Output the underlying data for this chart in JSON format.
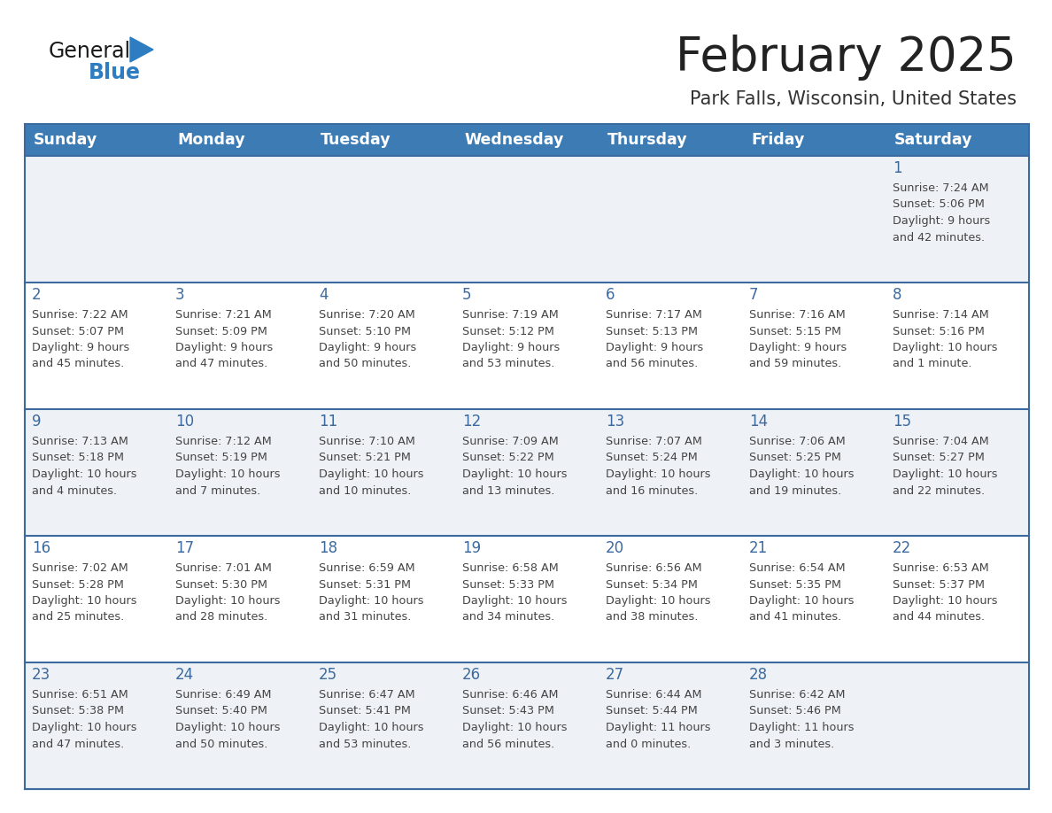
{
  "title": "February 2025",
  "subtitle": "Park Falls, Wisconsin, United States",
  "header_bg": "#3d7bb5",
  "header_text_color": "#ffffff",
  "day_names": [
    "Sunday",
    "Monday",
    "Tuesday",
    "Wednesday",
    "Thursday",
    "Friday",
    "Saturday"
  ],
  "row_bg_light": "#eef2f7",
  "row_bg_white": "#ffffff",
  "border_color": "#3d6a9e",
  "date_color": "#3d6a9e",
  "info_color": "#444444",
  "title_color": "#222222",
  "subtitle_color": "#333333",
  "logo_text_color": "#1a1a1a",
  "logo_blue_color": "#2e7dc0",
  "logo_triangle_color": "#2e7dc0",
  "calendar": [
    [
      {
        "day": "",
        "info": ""
      },
      {
        "day": "",
        "info": ""
      },
      {
        "day": "",
        "info": ""
      },
      {
        "day": "",
        "info": ""
      },
      {
        "day": "",
        "info": ""
      },
      {
        "day": "",
        "info": ""
      },
      {
        "day": "1",
        "info": "Sunrise: 7:24 AM\nSunset: 5:06 PM\nDaylight: 9 hours\nand 42 minutes."
      }
    ],
    [
      {
        "day": "2",
        "info": "Sunrise: 7:22 AM\nSunset: 5:07 PM\nDaylight: 9 hours\nand 45 minutes."
      },
      {
        "day": "3",
        "info": "Sunrise: 7:21 AM\nSunset: 5:09 PM\nDaylight: 9 hours\nand 47 minutes."
      },
      {
        "day": "4",
        "info": "Sunrise: 7:20 AM\nSunset: 5:10 PM\nDaylight: 9 hours\nand 50 minutes."
      },
      {
        "day": "5",
        "info": "Sunrise: 7:19 AM\nSunset: 5:12 PM\nDaylight: 9 hours\nand 53 minutes."
      },
      {
        "day": "6",
        "info": "Sunrise: 7:17 AM\nSunset: 5:13 PM\nDaylight: 9 hours\nand 56 minutes."
      },
      {
        "day": "7",
        "info": "Sunrise: 7:16 AM\nSunset: 5:15 PM\nDaylight: 9 hours\nand 59 minutes."
      },
      {
        "day": "8",
        "info": "Sunrise: 7:14 AM\nSunset: 5:16 PM\nDaylight: 10 hours\nand 1 minute."
      }
    ],
    [
      {
        "day": "9",
        "info": "Sunrise: 7:13 AM\nSunset: 5:18 PM\nDaylight: 10 hours\nand 4 minutes."
      },
      {
        "day": "10",
        "info": "Sunrise: 7:12 AM\nSunset: 5:19 PM\nDaylight: 10 hours\nand 7 minutes."
      },
      {
        "day": "11",
        "info": "Sunrise: 7:10 AM\nSunset: 5:21 PM\nDaylight: 10 hours\nand 10 minutes."
      },
      {
        "day": "12",
        "info": "Sunrise: 7:09 AM\nSunset: 5:22 PM\nDaylight: 10 hours\nand 13 minutes."
      },
      {
        "day": "13",
        "info": "Sunrise: 7:07 AM\nSunset: 5:24 PM\nDaylight: 10 hours\nand 16 minutes."
      },
      {
        "day": "14",
        "info": "Sunrise: 7:06 AM\nSunset: 5:25 PM\nDaylight: 10 hours\nand 19 minutes."
      },
      {
        "day": "15",
        "info": "Sunrise: 7:04 AM\nSunset: 5:27 PM\nDaylight: 10 hours\nand 22 minutes."
      }
    ],
    [
      {
        "day": "16",
        "info": "Sunrise: 7:02 AM\nSunset: 5:28 PM\nDaylight: 10 hours\nand 25 minutes."
      },
      {
        "day": "17",
        "info": "Sunrise: 7:01 AM\nSunset: 5:30 PM\nDaylight: 10 hours\nand 28 minutes."
      },
      {
        "day": "18",
        "info": "Sunrise: 6:59 AM\nSunset: 5:31 PM\nDaylight: 10 hours\nand 31 minutes."
      },
      {
        "day": "19",
        "info": "Sunrise: 6:58 AM\nSunset: 5:33 PM\nDaylight: 10 hours\nand 34 minutes."
      },
      {
        "day": "20",
        "info": "Sunrise: 6:56 AM\nSunset: 5:34 PM\nDaylight: 10 hours\nand 38 minutes."
      },
      {
        "day": "21",
        "info": "Sunrise: 6:54 AM\nSunset: 5:35 PM\nDaylight: 10 hours\nand 41 minutes."
      },
      {
        "day": "22",
        "info": "Sunrise: 6:53 AM\nSunset: 5:37 PM\nDaylight: 10 hours\nand 44 minutes."
      }
    ],
    [
      {
        "day": "23",
        "info": "Sunrise: 6:51 AM\nSunset: 5:38 PM\nDaylight: 10 hours\nand 47 minutes."
      },
      {
        "day": "24",
        "info": "Sunrise: 6:49 AM\nSunset: 5:40 PM\nDaylight: 10 hours\nand 50 minutes."
      },
      {
        "day": "25",
        "info": "Sunrise: 6:47 AM\nSunset: 5:41 PM\nDaylight: 10 hours\nand 53 minutes."
      },
      {
        "day": "26",
        "info": "Sunrise: 6:46 AM\nSunset: 5:43 PM\nDaylight: 10 hours\nand 56 minutes."
      },
      {
        "day": "27",
        "info": "Sunrise: 6:44 AM\nSunset: 5:44 PM\nDaylight: 11 hours\nand 0 minutes."
      },
      {
        "day": "28",
        "info": "Sunrise: 6:42 AM\nSunset: 5:46 PM\nDaylight: 11 hours\nand 3 minutes."
      },
      {
        "day": "",
        "info": ""
      }
    ]
  ]
}
